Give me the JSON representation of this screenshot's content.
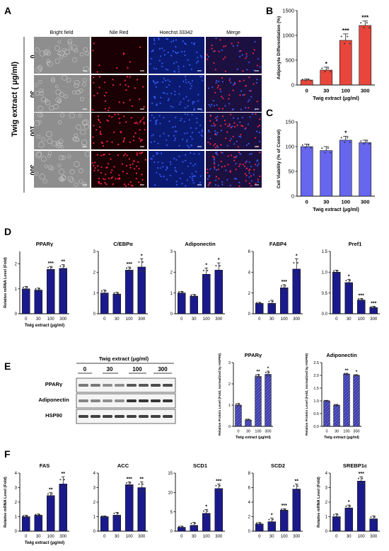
{
  "panel_letters": [
    "A",
    "B",
    "C",
    "D",
    "E",
    "F"
  ],
  "panelA": {
    "columns": [
      "Bright field",
      "Nile Red",
      "Hoechst 33342",
      "Merge"
    ],
    "row_axis_label": "Twig extract ( μg/ml)",
    "rows": [
      "0",
      "30",
      "100",
      "300"
    ],
    "channel_colors": {
      "bright": "#8e8e8e",
      "nile": "#1a0005",
      "hoechst": "#0a1a70",
      "merge": "#1c1040"
    }
  },
  "colors": {
    "red_bar": "#e8463c",
    "blue_bar": "#6666ee",
    "navy_bar": "#1a1a8c",
    "hatch_bar": "#3a3aaa",
    "dot": "#333333"
  },
  "blot": {
    "header": "Twig  extract  (μg/ml)",
    "doses": [
      "0",
      "30",
      "100",
      "300"
    ],
    "bands": [
      "PPARγ",
      "Adiponectin",
      "HSP90"
    ]
  },
  "chart_data": [
    {
      "id": "B",
      "type": "bar",
      "categories": [
        "0",
        "30",
        "100",
        "300"
      ],
      "values": [
        100,
        300,
        900,
        1200
      ],
      "errors": [
        20,
        60,
        130,
        90
      ],
      "sig": [
        "",
        "*",
        "***",
        "***"
      ],
      "ylabel": "Adipocyte Differentiation (%)",
      "xlabel": "Twig extract (μg/ml)",
      "ylim": [
        0,
        1500
      ],
      "yticks": [
        "0",
        "500",
        "1000",
        "1500"
      ],
      "color": "red"
    },
    {
      "id": "C",
      "type": "bar",
      "categories": [
        "0",
        "30",
        "100",
        "300"
      ],
      "values": [
        100,
        92,
        113,
        108
      ],
      "errors": [
        5,
        8,
        8,
        5
      ],
      "sig": [
        "",
        "",
        "*",
        ""
      ],
      "ylabel": "Cell Viability (% of Control)",
      "xlabel": "Twig extract (μg/ml)",
      "ylim": [
        0,
        150
      ],
      "yticks": [
        "0",
        "50",
        "100",
        "150"
      ],
      "color": "blue"
    },
    {
      "id": "D1",
      "type": "bar",
      "title": "PPARγ",
      "categories": [
        "0",
        "30",
        "100",
        "300"
      ],
      "values": [
        1.0,
        0.95,
        1.78,
        1.82
      ],
      "errors": [
        0.1,
        0.08,
        0.12,
        0.15
      ],
      "sig": [
        "",
        "",
        "***",
        "**"
      ],
      "ylabel": "Relative mRNA Level (Fold)",
      "xlabel": "Twig extract (μg/ml)",
      "ylim": [
        0,
        2.5
      ],
      "yticks": [
        "0",
        "1",
        "2"
      ],
      "color": "navy"
    },
    {
      "id": "D2",
      "type": "bar",
      "title": "C/EBPα",
      "categories": [
        "0",
        "30",
        "100",
        "300"
      ],
      "values": [
        1.0,
        0.95,
        2.1,
        2.25
      ],
      "errors": [
        0.15,
        0.08,
        0.15,
        0.4
      ],
      "sig": [
        "",
        "",
        "***",
        "*"
      ],
      "ylabel": "",
      "xlabel": "",
      "ylim": [
        0,
        3
      ],
      "yticks": [
        "0",
        "1",
        "2",
        "3"
      ],
      "color": "navy"
    },
    {
      "id": "D3",
      "type": "bar",
      "title": "Adiponectin",
      "categories": [
        "0",
        "30",
        "100",
        "300"
      ],
      "values": [
        1.0,
        0.85,
        1.9,
        2.1
      ],
      "errors": [
        0.08,
        0.08,
        0.3,
        0.35
      ],
      "sig": [
        "",
        "",
        "*",
        "*"
      ],
      "ylabel": "",
      "xlabel": "",
      "ylim": [
        0,
        3
      ],
      "yticks": [
        "0",
        "1",
        "2",
        "3"
      ],
      "color": "navy"
    },
    {
      "id": "D4",
      "type": "bar",
      "title": "FABP4",
      "categories": [
        "0",
        "30",
        "100",
        "300"
      ],
      "values": [
        1.0,
        1.0,
        2.5,
        4.3
      ],
      "errors": [
        0.1,
        0.3,
        0.3,
        1.0
      ],
      "sig": [
        "",
        "",
        "***",
        "*"
      ],
      "ylabel": "",
      "xlabel": "",
      "ylim": [
        0,
        6
      ],
      "yticks": [
        "0",
        "2",
        "4",
        "6"
      ],
      "color": "navy"
    },
    {
      "id": "D5",
      "type": "bar",
      "title": "Pref1",
      "categories": [
        "0",
        "30",
        "100",
        "300"
      ],
      "values": [
        1.0,
        0.75,
        0.33,
        0.15
      ],
      "errors": [
        0.05,
        0.08,
        0.04,
        0.03
      ],
      "sig": [
        "",
        "*",
        "***",
        "***"
      ],
      "ylabel": "",
      "xlabel": "",
      "ylim": [
        0,
        1.5
      ],
      "yticks": [
        "0.0",
        "0.5",
        "1.0",
        "1.5"
      ],
      "color": "navy"
    },
    {
      "id": "E1",
      "type": "bar",
      "title": "PPARγ",
      "categories": [
        "0",
        "30",
        "100",
        "300"
      ],
      "values": [
        1.0,
        0.3,
        2.35,
        2.45
      ],
      "errors": [
        0.08,
        0.04,
        0.1,
        0.15
      ],
      "sig": [
        "",
        "",
        "**",
        "*"
      ],
      "ylabel": "Relative Protein Level (Fold, normalized by HSP90)",
      "xlabel": "Twig extract (μg/ml)",
      "ylim": [
        0,
        3
      ],
      "yticks": [
        "0",
        "1",
        "2",
        "3"
      ],
      "color": "hatch"
    },
    {
      "id": "E2",
      "type": "bar",
      "title": "Adiponectin",
      "categories": [
        "0",
        "30",
        "100",
        "300"
      ],
      "values": [
        1.0,
        0.83,
        2.05,
        2.0
      ],
      "errors": [
        0.02,
        0.03,
        0.03,
        0.03
      ],
      "sig": [
        "",
        "",
        "**",
        "*"
      ],
      "ylabel": "Relative Protein Level (Fold, normalized by HSP90)",
      "xlabel": "Twig extract (μg/ml)",
      "ylim": [
        0,
        2.5
      ],
      "yticks": [
        "0.0",
        "0.5",
        "1.0",
        "1.5",
        "2.0",
        "2.5"
      ],
      "color": "hatch"
    },
    {
      "id": "F1",
      "type": "bar",
      "title": "FAS",
      "categories": [
        "0",
        "30",
        "100",
        "300"
      ],
      "values": [
        1.0,
        1.1,
        2.45,
        3.25
      ],
      "errors": [
        0.1,
        0.08,
        0.2,
        0.5
      ],
      "sig": [
        "",
        "",
        "**",
        "**"
      ],
      "ylabel": "Relative mRNA Level (Fold)",
      "xlabel": "Twig extract (μg/ml)",
      "ylim": [
        0,
        4
      ],
      "yticks": [
        "0",
        "1",
        "2",
        "3",
        "4"
      ],
      "color": "navy"
    },
    {
      "id": "F2",
      "type": "bar",
      "title": "ACC",
      "categories": [
        "0",
        "30",
        "100",
        "300"
      ],
      "values": [
        1.0,
        1.1,
        3.2,
        3.0
      ],
      "errors": [
        0.05,
        0.2,
        0.2,
        0.4
      ],
      "sig": [
        "",
        "",
        "***",
        "**"
      ],
      "ylabel": "",
      "xlabel": "",
      "ylim": [
        0,
        4
      ],
      "yticks": [
        "0",
        "1",
        "2",
        "3",
        "4"
      ],
      "color": "navy"
    },
    {
      "id": "F3",
      "type": "bar",
      "title": "SCD1",
      "categories": [
        "0",
        "30",
        "100",
        "300"
      ],
      "values": [
        1.0,
        1.5,
        4.6,
        11.0
      ],
      "errors": [
        0.3,
        0.8,
        1.0,
        1.2
      ],
      "sig": [
        "",
        "",
        "*",
        "***"
      ],
      "ylabel": "",
      "xlabel": "",
      "ylim": [
        0,
        15
      ],
      "yticks": [
        "0",
        "5",
        "10",
        "15"
      ],
      "color": "navy"
    },
    {
      "id": "F4",
      "type": "bar",
      "title": "SCD2",
      "categories": [
        "0",
        "30",
        "100",
        "300"
      ],
      "values": [
        1.0,
        1.3,
        2.9,
        5.8
      ],
      "errors": [
        0.2,
        0.5,
        0.2,
        0.7
      ],
      "sig": [
        "",
        "*",
        "***",
        "**"
      ],
      "ylabel": "",
      "xlabel": "",
      "ylim": [
        0,
        8
      ],
      "yticks": [
        "0",
        "2",
        "4",
        "6",
        "8"
      ],
      "color": "navy"
    },
    {
      "id": "F5",
      "type": "bar",
      "title": "SREBP1c",
      "categories": [
        "0",
        "30",
        "100",
        "300"
      ],
      "values": [
        1.0,
        1.6,
        3.45,
        0.85
      ],
      "errors": [
        0.2,
        0.2,
        0.3,
        0.2
      ],
      "sig": [
        "",
        "*",
        "***",
        ""
      ],
      "ylabel": "Relative mRNA Level (Fold)",
      "xlabel": "",
      "ylim": [
        0,
        4
      ],
      "yticks": [
        "0",
        "1",
        "2",
        "3",
        "4"
      ],
      "color": "navy"
    }
  ]
}
